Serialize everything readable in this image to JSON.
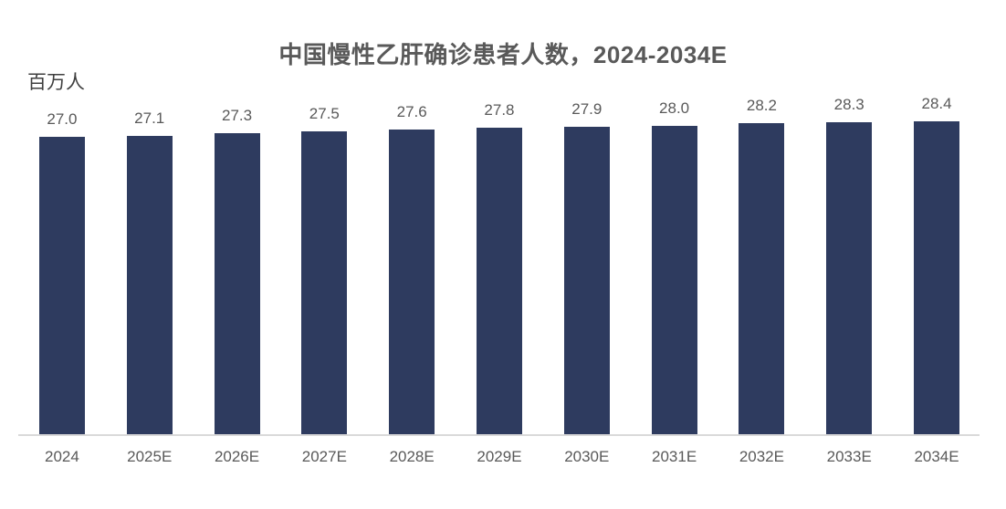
{
  "chart_data": {
    "type": "bar",
    "title": "中国慢性乙肝确诊患者人数，2024-2034E",
    "unit_label": "百万人",
    "categories": [
      "2024",
      "2025E",
      "2026E",
      "2027E",
      "2028E",
      "2029E",
      "2030E",
      "2031E",
      "2032E",
      "2033E",
      "2034E"
    ],
    "values": [
      27.0,
      27.1,
      27.3,
      27.5,
      27.6,
      27.8,
      27.9,
      28.0,
      28.2,
      28.3,
      28.4
    ],
    "value_labels": [
      "27.0",
      "27.1",
      "27.3",
      "27.5",
      "27.6",
      "27.8",
      "27.9",
      "28.0",
      "28.2",
      "28.3",
      "28.4"
    ],
    "xlabel": "",
    "ylabel": "百万人",
    "ylim": [
      0,
      29
    ],
    "grid": false,
    "legend_position": "none",
    "bar_color": "#2E3B5F",
    "label_color": "#595959",
    "axis_line_color": "#D9D9D9"
  }
}
